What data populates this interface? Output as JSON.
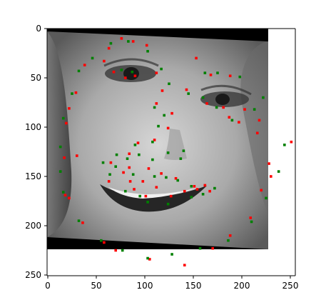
{
  "chart_data": {
    "type": "scatter",
    "title": "",
    "xlabel": "",
    "ylabel": "",
    "xlim": [
      0,
      256
    ],
    "ylim": [
      256,
      0
    ],
    "y_inverted": true,
    "x_ticks": [
      0,
      50,
      100,
      150,
      200,
      250
    ],
    "y_ticks": [
      0,
      50,
      100,
      150,
      200,
      250
    ],
    "grid": false,
    "legend": "none",
    "background_image": "grayscale close-up of a smiling face, slightly rotated, black border corners",
    "series": [
      {
        "color": "#ff0000",
        "marker": "small-square",
        "points": [
          [
            76,
            10
          ],
          [
            88,
            13
          ],
          [
            102,
            17
          ],
          [
            112,
            45
          ],
          [
            118,
            63
          ],
          [
            112,
            76
          ],
          [
            90,
            48
          ],
          [
            80,
            50
          ],
          [
            68,
            44
          ],
          [
            63,
            20
          ],
          [
            58,
            33
          ],
          [
            38,
            37
          ],
          [
            29,
            65
          ],
          [
            22,
            81
          ],
          [
            19,
            96
          ],
          [
            30,
            129
          ],
          [
            17,
            131
          ],
          [
            18,
            169
          ],
          [
            22,
            172
          ],
          [
            36,
            197
          ],
          [
            58,
            217
          ],
          [
            70,
            225
          ],
          [
            105,
            234
          ],
          [
            141,
            240
          ],
          [
            170,
            223
          ],
          [
            188,
            210
          ],
          [
            209,
            192
          ],
          [
            220,
            164
          ],
          [
            228,
            137
          ],
          [
            251,
            115
          ],
          [
            230,
            150
          ],
          [
            153,
            30
          ],
          [
            168,
            47
          ],
          [
            188,
            48
          ],
          [
            203,
            82
          ],
          [
            218,
            93
          ],
          [
            216,
            106
          ],
          [
            197,
            95
          ],
          [
            187,
            90
          ],
          [
            181,
            80
          ],
          [
            164,
            76
          ],
          [
            143,
            62
          ],
          [
            128,
            86
          ],
          [
            124,
            101
          ],
          [
            110,
            113
          ],
          [
            93,
            116
          ],
          [
            84,
            127
          ],
          [
            84,
            141
          ],
          [
            104,
            142
          ],
          [
            117,
            147
          ],
          [
            132,
            152
          ],
          [
            151,
            160
          ],
          [
            162,
            159
          ],
          [
            167,
            165
          ],
          [
            154,
            163
          ],
          [
            141,
            165
          ],
          [
            127,
            170
          ],
          [
            101,
            170
          ],
          [
            85,
            155
          ],
          [
            78,
            146
          ],
          [
            65,
            136
          ],
          [
            63,
            155
          ],
          [
            89,
            163
          ],
          [
            98,
            155
          ],
          [
            112,
            161
          ]
        ]
      },
      {
        "color": "#008000",
        "marker": "small-square",
        "points": [
          [
            65,
            15
          ],
          [
            83,
            13
          ],
          [
            103,
            23
          ],
          [
            117,
            41
          ],
          [
            125,
            56
          ],
          [
            110,
            80
          ],
          [
            87,
            44
          ],
          [
            76,
            42
          ],
          [
            46,
            30
          ],
          [
            32,
            43
          ],
          [
            25,
            66
          ],
          [
            16,
            91
          ],
          [
            13,
            120
          ],
          [
            13,
            145
          ],
          [
            16,
            166
          ],
          [
            32,
            195
          ],
          [
            55,
            215
          ],
          [
            77,
            225
          ],
          [
            103,
            233
          ],
          [
            128,
            229
          ],
          [
            157,
            223
          ],
          [
            186,
            215
          ],
          [
            210,
            196
          ],
          [
            225,
            172
          ],
          [
            238,
            145
          ],
          [
            244,
            118
          ],
          [
            162,
            45
          ],
          [
            175,
            45
          ],
          [
            198,
            49
          ],
          [
            213,
            82
          ],
          [
            222,
            70
          ],
          [
            190,
            93
          ],
          [
            174,
            80
          ],
          [
            160,
            70
          ],
          [
            145,
            66
          ],
          [
            120,
            88
          ],
          [
            114,
            99
          ],
          [
            108,
            115
          ],
          [
            90,
            118
          ],
          [
            82,
            132
          ],
          [
            88,
            148
          ],
          [
            110,
            150
          ],
          [
            122,
            151
          ],
          [
            134,
            154
          ],
          [
            148,
            160
          ],
          [
            172,
            162
          ],
          [
            160,
            168
          ],
          [
            148,
            171
          ],
          [
            124,
            178
          ],
          [
            103,
            176
          ],
          [
            95,
            170
          ],
          [
            80,
            165
          ],
          [
            70,
            140
          ],
          [
            64,
            148
          ],
          [
            57,
            136
          ],
          [
            71,
            128
          ],
          [
            94,
            128
          ],
          [
            108,
            133
          ],
          [
            124,
            126
          ],
          [
            140,
            124
          ],
          [
            137,
            132
          ]
        ]
      }
    ]
  }
}
